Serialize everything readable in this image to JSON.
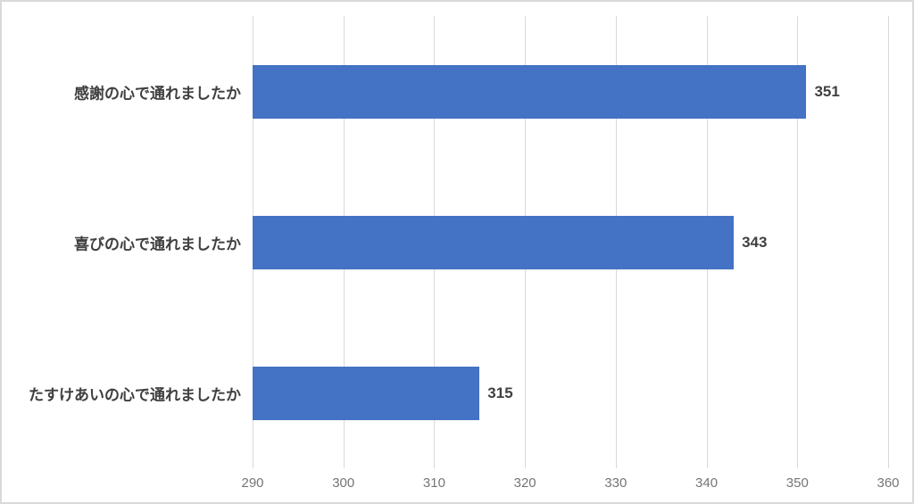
{
  "chart_data": {
    "type": "bar",
    "orientation": "horizontal",
    "title": "",
    "xlabel": "",
    "ylabel": "",
    "categories": [
      "感謝の心で通れましたか",
      "喜びの心で通れましたか",
      "たすけあいの心で通れましたか"
    ],
    "values": [
      351,
      343,
      315
    ],
    "data_labels": [
      "351",
      "343",
      "315"
    ],
    "xlim": [
      290,
      360
    ],
    "xticks": [
      290,
      300,
      310,
      320,
      330,
      340,
      350,
      360
    ],
    "grid": true,
    "legend": "none",
    "colors": {
      "bar_fill": "#4472c4",
      "gridline": "#d9d9d9",
      "canvas_border": "#d9d9d9",
      "background": "#ffffff",
      "category_label": "#3f3f3f",
      "value_label": "#404040",
      "tick_label": "#757575"
    }
  }
}
